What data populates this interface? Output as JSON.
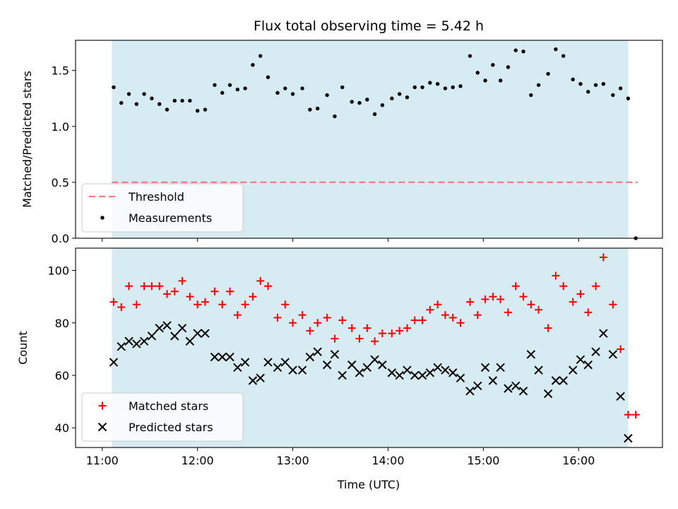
{
  "title": "Flux total observing time = 5.42 h",
  "xlabel": "Time (UTC)",
  "x_tick_labels": [
    "11:00",
    "12:00",
    "13:00",
    "14:00",
    "15:00",
    "16:00"
  ],
  "colors": {
    "shade": "#add8e6",
    "threshold": "#f08080",
    "matched": "#ff0000",
    "predicted": "#000000",
    "measurement": "#000000"
  },
  "chart_data": [
    {
      "type": "scatter",
      "ylabel": "Matched/Predicted stars",
      "x_unit": "hours UTC",
      "xlim": [
        10.72,
        16.88
      ],
      "ylim": [
        0.0,
        1.77
      ],
      "y_ticks": [
        0.0,
        0.5,
        1.0,
        1.5
      ],
      "y_tick_labels": [
        "0.0",
        "0.5",
        "1.0",
        "1.5"
      ],
      "observing_window": [
        11.1,
        16.52
      ],
      "threshold": 0.5,
      "legend": {
        "position": "lower left",
        "entries": [
          "Threshold",
          "Measurements"
        ]
      },
      "series": [
        {
          "name": "Measurements",
          "x": [
            11.12,
            11.2,
            11.28,
            11.36,
            11.44,
            11.52,
            11.6,
            11.68,
            11.76,
            11.84,
            11.92,
            12.0,
            12.08,
            12.18,
            12.26,
            12.34,
            12.42,
            12.5,
            12.58,
            12.66,
            12.74,
            12.84,
            12.92,
            13.0,
            13.1,
            13.18,
            13.26,
            13.36,
            13.44,
            13.52,
            13.62,
            13.7,
            13.78,
            13.86,
            13.94,
            14.04,
            14.12,
            14.2,
            14.28,
            14.36,
            14.44,
            14.52,
            14.6,
            14.68,
            14.76,
            14.86,
            14.94,
            15.02,
            15.1,
            15.18,
            15.26,
            15.34,
            15.42,
            15.5,
            15.58,
            15.68,
            15.76,
            15.84,
            15.94,
            16.02,
            16.1,
            16.18,
            16.26,
            16.36,
            16.44,
            16.52,
            16.6
          ],
          "y": [
            1.35,
            1.21,
            1.29,
            1.2,
            1.29,
            1.25,
            1.2,
            1.15,
            1.23,
            1.23,
            1.23,
            1.14,
            1.15,
            1.37,
            1.3,
            1.37,
            1.33,
            1.34,
            1.55,
            1.63,
            1.44,
            1.3,
            1.34,
            1.29,
            1.34,
            1.15,
            1.16,
            1.28,
            1.09,
            1.35,
            1.22,
            1.21,
            1.24,
            1.11,
            1.19,
            1.25,
            1.29,
            1.26,
            1.35,
            1.35,
            1.39,
            1.38,
            1.34,
            1.35,
            1.36,
            1.63,
            1.48,
            1.41,
            1.55,
            1.41,
            1.53,
            1.68,
            1.67,
            1.28,
            1.37,
            1.47,
            1.69,
            1.63,
            1.42,
            1.38,
            1.31,
            1.37,
            1.38,
            1.28,
            1.34,
            1.25,
            0.0
          ]
        }
      ]
    },
    {
      "type": "scatter",
      "ylabel": "Count",
      "x_unit": "hours UTC",
      "xlim": [
        10.72,
        16.88
      ],
      "ylim": [
        32.5,
        108.5
      ],
      "y_ticks": [
        40,
        60,
        80,
        100
      ],
      "y_tick_labels": [
        "40",
        "60",
        "80",
        "100"
      ],
      "observing_window": [
        11.1,
        16.52
      ],
      "legend": {
        "position": "lower left",
        "entries": [
          "Matched stars",
          "Predicted stars"
        ]
      },
      "series": [
        {
          "name": "Matched stars",
          "marker": "plus",
          "x": [
            11.12,
            11.2,
            11.28,
            11.36,
            11.44,
            11.52,
            11.6,
            11.68,
            11.76,
            11.84,
            11.92,
            12.0,
            12.08,
            12.18,
            12.26,
            12.34,
            12.42,
            12.5,
            12.58,
            12.66,
            12.74,
            12.84,
            12.92,
            13.0,
            13.1,
            13.18,
            13.26,
            13.36,
            13.44,
            13.52,
            13.62,
            13.7,
            13.78,
            13.86,
            13.94,
            14.04,
            14.12,
            14.2,
            14.28,
            14.36,
            14.44,
            14.52,
            14.6,
            14.68,
            14.76,
            14.86,
            14.94,
            15.02,
            15.1,
            15.18,
            15.26,
            15.34,
            15.42,
            15.5,
            15.58,
            15.68,
            15.76,
            15.84,
            15.94,
            16.02,
            16.1,
            16.18,
            16.26,
            16.36,
            16.44,
            16.52,
            16.6
          ],
          "y": [
            88,
            86,
            94,
            87,
            94,
            94,
            94,
            91,
            92,
            96,
            90,
            87,
            88,
            92,
            87,
            92,
            83,
            87,
            90,
            96,
            94,
            82,
            87,
            80,
            83,
            77,
            80,
            82,
            74,
            81,
            78,
            74,
            78,
            73,
            76,
            76,
            77,
            78,
            81,
            81,
            85,
            87,
            83,
            82,
            80,
            88,
            83,
            89,
            90,
            89,
            84,
            94,
            90,
            87,
            85,
            78,
            98,
            94,
            88,
            91,
            84,
            94,
            105,
            87,
            70,
            45,
            45
          ]
        },
        {
          "name": "Predicted stars",
          "marker": "x",
          "x": [
            11.12,
            11.2,
            11.28,
            11.36,
            11.44,
            11.52,
            11.6,
            11.68,
            11.76,
            11.84,
            11.92,
            12.0,
            12.08,
            12.18,
            12.26,
            12.34,
            12.42,
            12.5,
            12.58,
            12.66,
            12.74,
            12.84,
            12.92,
            13.0,
            13.1,
            13.18,
            13.26,
            13.36,
            13.44,
            13.52,
            13.62,
            13.7,
            13.78,
            13.86,
            13.94,
            14.04,
            14.12,
            14.2,
            14.28,
            14.36,
            14.44,
            14.52,
            14.6,
            14.68,
            14.76,
            14.86,
            14.94,
            15.02,
            15.1,
            15.18,
            15.26,
            15.34,
            15.42,
            15.5,
            15.58,
            15.68,
            15.76,
            15.84,
            15.94,
            16.02,
            16.1,
            16.18,
            16.26,
            16.36,
            16.44,
            16.52
          ],
          "y": [
            65,
            71,
            73,
            72,
            73,
            75,
            78,
            79,
            75,
            78,
            73,
            76,
            76,
            67,
            67,
            67,
            63,
            65,
            58,
            59,
            65,
            63,
            65,
            62,
            62,
            67,
            69,
            64,
            68,
            60,
            64,
            61,
            63,
            66,
            64,
            61,
            60,
            62,
            60,
            60,
            61,
            63,
            62,
            61,
            59,
            54,
            56,
            63,
            58,
            63,
            55,
            56,
            54,
            68,
            62,
            53,
            58,
            58,
            62,
            66,
            64,
            69,
            76,
            68,
            52,
            36
          ]
        }
      ]
    }
  ]
}
